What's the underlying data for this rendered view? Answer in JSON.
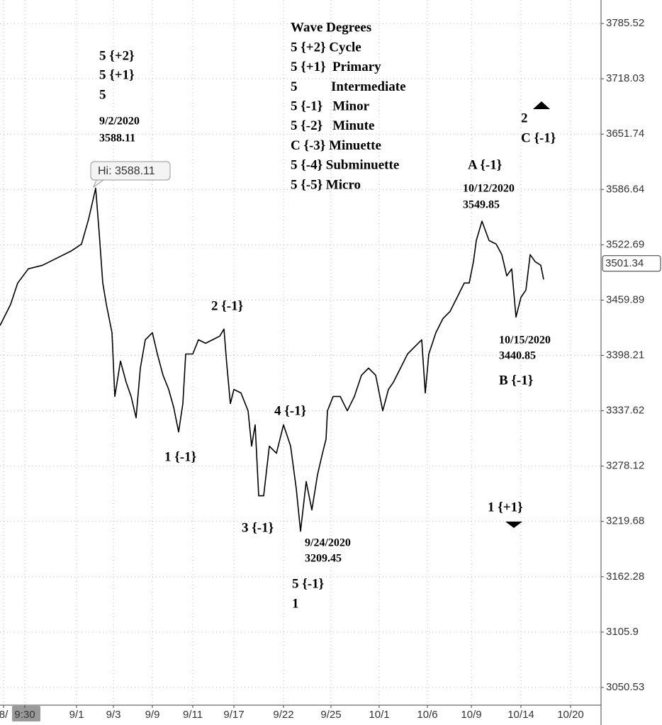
{
  "chart_data": {
    "type": "line",
    "log": true,
    "grid": true,
    "color": "#000000",
    "xlim": [
      0,
      848
    ],
    "xticks": [
      {
        "value": 5,
        "label": "8/"
      },
      {
        "value": 35,
        "label": "9:30"
      },
      {
        "value": 108,
        "label": "9/1"
      },
      {
        "value": 160,
        "label": "9/3"
      },
      {
        "value": 215,
        "label": "9/9"
      },
      {
        "value": 272,
        "label": "9/11"
      },
      {
        "value": 330,
        "label": "9/17"
      },
      {
        "value": 400,
        "label": "9/22"
      },
      {
        "value": 467,
        "label": "9/25"
      },
      {
        "value": 535,
        "label": "10/1"
      },
      {
        "value": 603,
        "label": "10/6"
      },
      {
        "value": 665,
        "label": "10/9"
      },
      {
        "value": 735,
        "label": "10/14"
      },
      {
        "value": 805,
        "label": "10/20"
      }
    ],
    "ylim": [
      3033.0,
      3814.5
    ],
    "yticks": [
      3785.52,
      3718.03,
      3651.74,
      3586.64,
      3522.69,
      3459.89,
      3398.21,
      3337.62,
      3278.12,
      3219.68,
      3162.28,
      3105.9,
      3050.53
    ],
    "x": [
      0,
      15,
      25,
      40,
      60,
      80,
      100,
      115,
      125,
      135,
      140,
      145,
      150,
      158,
      162,
      170,
      178,
      185,
      192,
      198,
      205,
      215,
      222,
      230,
      238,
      245,
      252,
      258,
      262,
      272,
      280,
      290,
      300,
      310,
      316,
      320,
      325,
      330,
      340,
      350,
      355,
      360,
      365,
      372,
      380,
      390,
      400,
      410,
      418,
      424,
      432,
      440,
      448,
      455,
      460,
      462,
      470,
      480,
      490,
      500,
      510,
      520,
      530,
      540,
      548,
      555,
      565,
      575,
      585,
      595,
      600,
      605,
      615,
      625,
      635,
      645,
      655,
      662,
      668,
      672,
      680,
      690,
      700,
      708,
      715,
      722,
      728,
      735,
      742,
      748,
      755,
      763,
      767
    ],
    "values": [
      3431.4,
      3455.2,
      3479.2,
      3495.3,
      3499.3,
      3507.4,
      3515.4,
      3523.5,
      3552.2,
      3588.11,
      3535.8,
      3479.2,
      3455.2,
      3423.5,
      3353.2,
      3392.0,
      3368.7,
      3353.2,
      3330.0,
      3384.2,
      3415.6,
      3423.5,
      3399.8,
      3376.5,
      3360.9,
      3341.5,
      3314.7,
      3345.4,
      3399.8,
      3399.8,
      3415.6,
      3411.7,
      3415.6,
      3419.6,
      3427.5,
      3388.1,
      3345.4,
      3360.9,
      3357.0,
      3337.6,
      3299.5,
      3322.4,
      3246.6,
      3246.6,
      3299.5,
      3291.8,
      3322.4,
      3299.5,
      3254.1,
      3209.45,
      3261.6,
      3231.7,
      3269.1,
      3291.8,
      3307.1,
      3337.6,
      3353.2,
      3353.2,
      3337.6,
      3353.2,
      3376.5,
      3384.2,
      3376.5,
      3337.6,
      3360.9,
      3368.7,
      3384.2,
      3399.8,
      3407.7,
      3415.6,
      3357.0,
      3399.8,
      3423.5,
      3439.3,
      3447.2,
      3463.1,
      3479.2,
      3479.2,
      3503.4,
      3527.6,
      3549.85,
      3527.6,
      3523.5,
      3511.4,
      3487.3,
      3495.3,
      3440.85,
      3463.1,
      3471.2,
      3511.4,
      3503.4,
      3499.3,
      3483.2
    ],
    "last_price": 3501.34,
    "hi_label": "Hi: 3588.11",
    "legend_title": "Wave Degrees",
    "wave_degrees": [
      "5 {+2} Cycle",
      "5 {+1}  Primary",
      "5          Intermediate",
      "5 {-1}   Minor",
      "5 {-2}   Minute",
      "C {-3} Minuette",
      "5 {-4} Subminuette",
      "5 {-5} Micro"
    ],
    "annotations": [
      "5 {+2}",
      "5 {+1}",
      "5",
      "9/2/2020",
      "3588.11",
      "2 {-1}",
      "1 {-1}",
      "4 {-1}",
      "3 {-1}",
      "9/24/2020",
      "3209.45",
      "5 {-1}",
      "1",
      "A {-1}",
      "10/12/2020",
      "3549.85",
      "2",
      "C {-1}",
      "10/15/2020",
      "3440.85",
      "B {-1}",
      "1 {+1}"
    ]
  }
}
